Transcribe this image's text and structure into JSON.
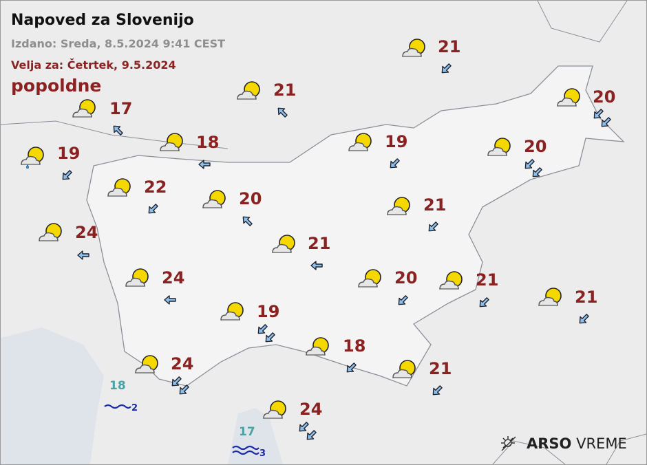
{
  "header": {
    "title": "Napoved za Slovenijo",
    "issued": "Izdano: Sreda, 8.5.2024 9:41 CEST",
    "valid": "Velja za: Četrtek, 9.5.2024",
    "period": "popoldne"
  },
  "colors": {
    "temperature": "#8b2222",
    "sea_temperature": "#4aa3a3",
    "waves": "#1a2aa8",
    "sun": "#f5d800"
  },
  "stations": [
    {
      "temp": "17",
      "weather": "partly-cloudy-icon",
      "wind_dir": "NW",
      "wind_arrows": 1
    },
    {
      "temp": "21",
      "weather": "partly-cloudy-icon",
      "wind_dir": "NW",
      "wind_arrows": 1
    },
    {
      "temp": "21",
      "weather": "partly-cloudy-icon",
      "wind_dir": "SW",
      "wind_arrows": 1
    },
    {
      "temp": "20",
      "weather": "partly-cloudy-icon",
      "wind_dir": "SW",
      "wind_arrows": 2
    },
    {
      "temp": "19",
      "weather": "partly-cloudy-rain-icon",
      "wind_dir": "SW",
      "wind_arrows": 1
    },
    {
      "temp": "18",
      "weather": "partly-cloudy-icon",
      "wind_dir": "W",
      "wind_arrows": 1
    },
    {
      "temp": "19",
      "weather": "partly-cloudy-icon",
      "wind_dir": "SW",
      "wind_arrows": 1
    },
    {
      "temp": "20",
      "weather": "partly-cloudy-icon",
      "wind_dir": "SW",
      "wind_arrows": 2
    },
    {
      "temp": "22",
      "weather": "partly-cloudy-icon",
      "wind_dir": "SW",
      "wind_arrows": 1
    },
    {
      "temp": "20",
      "weather": "partly-cloudy-icon",
      "wind_dir": "NW",
      "wind_arrows": 1
    },
    {
      "temp": "21",
      "weather": "partly-cloudy-icon",
      "wind_dir": "SW",
      "wind_arrows": 1
    },
    {
      "temp": "24",
      "weather": "partly-cloudy-icon",
      "wind_dir": "W",
      "wind_arrows": 1
    },
    {
      "temp": "21",
      "weather": "partly-cloudy-icon",
      "wind_dir": "W",
      "wind_arrows": 1
    },
    {
      "temp": "24",
      "weather": "partly-cloudy-icon",
      "wind_dir": "W",
      "wind_arrows": 1
    },
    {
      "temp": "20",
      "weather": "partly-cloudy-icon",
      "wind_dir": "SW",
      "wind_arrows": 1
    },
    {
      "temp": "21",
      "weather": "partly-cloudy-icon",
      "wind_dir": "SW",
      "wind_arrows": 1
    },
    {
      "temp": "21",
      "weather": "partly-cloudy-icon",
      "wind_dir": "SW",
      "wind_arrows": 1
    },
    {
      "temp": "19",
      "weather": "partly-cloudy-icon",
      "wind_dir": "SW",
      "wind_arrows": 2
    },
    {
      "temp": "18",
      "weather": "partly-cloudy-icon",
      "wind_dir": "SW",
      "wind_arrows": 1
    },
    {
      "temp": "24",
      "weather": "partly-cloudy-icon",
      "wind_dir": "SW",
      "wind_arrows": 2
    },
    {
      "temp": "21",
      "weather": "partly-cloudy-icon",
      "wind_dir": "SW",
      "wind_arrows": 1
    },
    {
      "temp": "24",
      "weather": "partly-cloudy-icon",
      "wind_dir": "SW",
      "wind_arrows": 2
    }
  ],
  "sea": [
    {
      "temp": "18",
      "wave_state": "2"
    },
    {
      "temp": "17",
      "wave_state": "3"
    }
  ],
  "logo": {
    "bold": "ARSO",
    "light": "VREME"
  }
}
